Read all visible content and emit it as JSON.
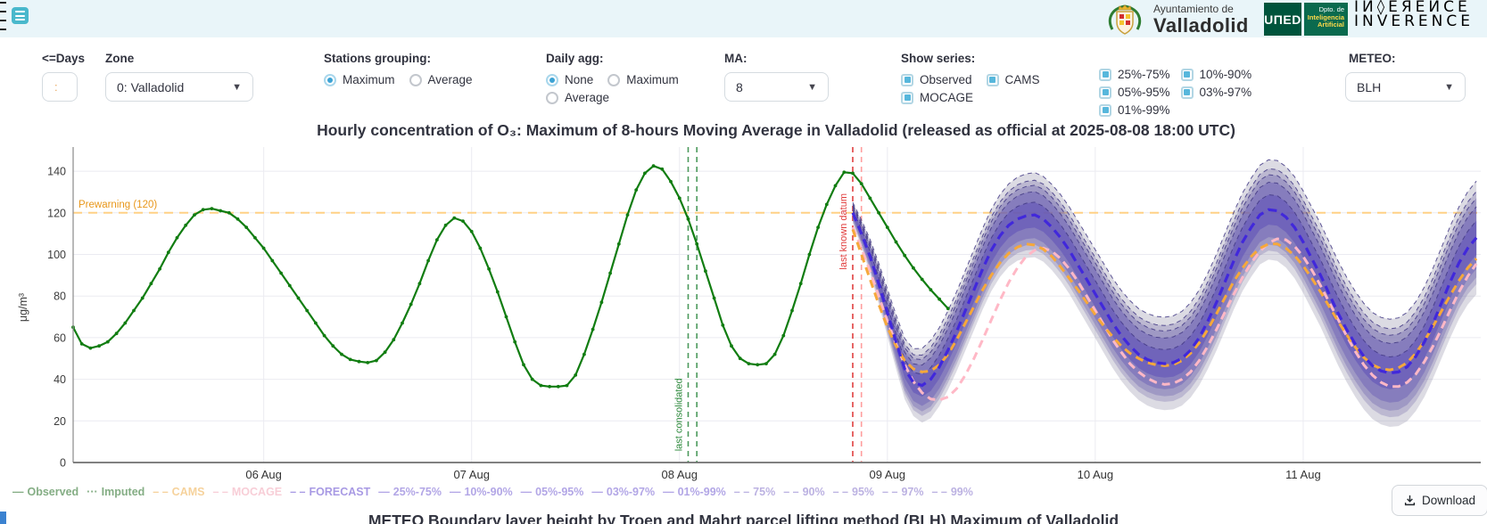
{
  "header": {
    "logos": {
      "city_tagline": "Ayuntamiento de",
      "city_name": "Valladolid",
      "uned": "UΠED",
      "dept_lines": [
        "Dpto. de",
        "Inteligencia",
        "Artificial"
      ],
      "inverence_top": "IИ◊EЯEИCE",
      "inverence_bottom": "INVERENCE"
    }
  },
  "controls": {
    "days": {
      "label": "<=Days",
      "value": ":"
    },
    "zone": {
      "label": "Zone",
      "value": "0: Valladolid"
    },
    "stations": {
      "label": "Stations grouping:",
      "options": [
        {
          "label": "Maximum",
          "selected": true
        },
        {
          "label": "Average",
          "selected": false
        }
      ]
    },
    "daily": {
      "label": "Daily agg:",
      "options": [
        {
          "label": "None",
          "selected": true
        },
        {
          "label": "Maximum",
          "selected": false
        },
        {
          "label": "Average",
          "selected": false
        }
      ]
    },
    "ma": {
      "label": "MA:",
      "value": "8"
    },
    "show_series": {
      "label": "Show series:",
      "options": [
        {
          "label": "Observed",
          "checked": true
        },
        {
          "label": "CAMS",
          "checked": true
        },
        {
          "label": "MOCAGE",
          "checked": true
        }
      ]
    },
    "percentiles": {
      "options": [
        {
          "label": "25%-75%",
          "checked": true
        },
        {
          "label": "10%-90%",
          "checked": true
        },
        {
          "label": "05%-95%",
          "checked": true
        },
        {
          "label": "03%-97%",
          "checked": true
        },
        {
          "label": "01%-99%",
          "checked": true
        }
      ]
    },
    "meteo": {
      "label": "METEO:",
      "value": "BLH"
    }
  },
  "chart_data": {
    "type": "line",
    "title": "Hourly concentration of O₃: Maximum of 8-hours Moving Average in Valladolid (released as official at 2025-08-08 18:00 UTC)",
    "ylabel": "μg/m³",
    "ylim": [
      0,
      151.6
    ],
    "yticks": [
      0,
      20,
      40,
      60,
      80,
      100,
      120,
      140
    ],
    "t_range": [
      0,
      162.5
    ],
    "x_ticks": [
      {
        "t": 22,
        "label": "06 Aug"
      },
      {
        "t": 46,
        "label": "07 Aug"
      },
      {
        "t": 70,
        "label": "08 Aug"
      },
      {
        "t": 94,
        "label": "09 Aug"
      },
      {
        "t": 118,
        "label": "10 Aug"
      },
      {
        "t": 142,
        "label": "11 Aug"
      }
    ],
    "grid": true,
    "threshold": {
      "value": 120,
      "label": "Prewarning (120)",
      "color": "#ffd185",
      "label_color": "#e8971b"
    },
    "vlines": [
      {
        "t": 71,
        "color": "#4c9a5c",
        "label": "last consolidated",
        "label_color": "#2e8b3c",
        "label_t": 70.3,
        "label_v": 23
      },
      {
        "t": 72,
        "color": "#4c9a5c"
      },
      {
        "t": 90,
        "color": "#e04040",
        "label": "last known datum",
        "label_color": "#e03c3c",
        "label_t": 89.3,
        "label_v": 111
      },
      {
        "t": 91,
        "color": "#ff9e9e"
      }
    ],
    "series": {
      "observed": {
        "name": "Observed",
        "color": "#117d11",
        "t_start": 0,
        "values": [
          65,
          57,
          55,
          56,
          58,
          62,
          67,
          73,
          79,
          86,
          93,
          101,
          108,
          114,
          119,
          121.5,
          122,
          121,
          120,
          117,
          113,
          108,
          103,
          97,
          91,
          85,
          79,
          73,
          67,
          61,
          56,
          52,
          49.5,
          48.5,
          48,
          49,
          53,
          59,
          67,
          76,
          86,
          97,
          107,
          114,
          117.5,
          116,
          111,
          103,
          93,
          82,
          70,
          58,
          47,
          40,
          37,
          36.5,
          36.5,
          37,
          42,
          52,
          64,
          77,
          91,
          105,
          119,
          131,
          139,
          142.5,
          141,
          135,
          127,
          117,
          105,
          92,
          79,
          66,
          56,
          50,
          47.5,
          47,
          47.5,
          52,
          61,
          73,
          86,
          100,
          113,
          124,
          133,
          139.5,
          139,
          134,
          127,
          120,
          113,
          106,
          99.5,
          93.5,
          88,
          83,
          78.5,
          74
        ]
      },
      "forecast": {
        "name": "FORECAST",
        "color": "#4128db",
        "t_start": 90,
        "values": [
          120,
          110,
          99,
          86,
          72,
          58,
          45,
          38.5,
          37,
          40,
          46,
          54,
          63,
          73,
          83,
          93,
          102,
          109,
          114,
          117,
          118.5,
          119,
          117,
          113,
          108,
          102,
          95,
          88,
          81,
          74,
          67,
          61,
          56,
          52,
          49.5,
          48,
          47.5,
          48,
          50,
          54,
          60,
          68,
          77,
          87,
          97,
          106,
          113,
          119,
          121.5,
          121,
          118,
          113,
          106,
          98,
          90,
          81,
          72,
          64,
          57,
          51,
          46.5,
          44,
          43,
          43.5,
          46,
          51,
          58,
          67,
          77,
          87,
          96,
          103,
          108
        ]
      },
      "cams": {
        "name": "CAMS",
        "color": "#f6a83a",
        "t_start": 90,
        "values": [
          112,
          100,
          88,
          76,
          65,
          56,
          49,
          45,
          43.5,
          44,
          47,
          52,
          59,
          67,
          75,
          83,
          90,
          96,
          100.5,
          103.5,
          105,
          104.5,
          102.5,
          99,
          94,
          88.5,
          83,
          77,
          71,
          65.5,
          60.5,
          56,
          52.5,
          50,
          48,
          47,
          46.5,
          47,
          49,
          52.5,
          57.5,
          64,
          71.5,
          79.5,
          87,
          93.5,
          99,
          103,
          105,
          105,
          103,
          99.5,
          94.5,
          88.5,
          82,
          75,
          68,
          61.5,
          55.5,
          50.5,
          47,
          45,
          44.5,
          45.5,
          48,
          52.5,
          58.5,
          65.5,
          73,
          80.5,
          87.5,
          93.5,
          98
        ]
      },
      "mocage": {
        "name": "MOCAGE",
        "color": "#ffb8c6",
        "t_start": 90,
        "values": [
          113,
          103,
          92,
          80,
          68,
          57,
          47,
          39,
          33.5,
          30.5,
          30,
          31.5,
          35.5,
          42,
          50,
          59,
          68.5,
          78,
          86.5,
          93.5,
          99,
          102,
          103,
          101.5,
          98,
          93,
          87,
          80,
          73,
          66,
          59,
          53,
          47.5,
          43.5,
          40.5,
          38.5,
          37.5,
          38,
          40,
          43.5,
          49,
          56,
          64,
          72.5,
          81,
          89,
          96,
          101.5,
          105.5,
          107.5,
          107,
          104,
          99,
          92.5,
          85,
          77,
          69,
          61,
          53.5,
          47,
          42,
          38.5,
          36.5,
          36.5,
          38.5,
          42.5,
          48.5,
          56,
          64.5,
          73.5,
          82,
          89.5,
          95.5
        ]
      }
    },
    "bands": {
      "labels": [
        "25%-75%",
        "10%-90%",
        "05%-95%",
        "03%-97%",
        "01%-99%"
      ],
      "k": [
        0.3,
        0.55,
        0.7,
        0.82,
        1.0
      ],
      "fills": [
        "rgba(97,82,184,0.58)",
        "rgba(105,92,180,0.46)",
        "rgba(113,102,176,0.38)",
        "rgba(122,113,170,0.32)",
        "rgba(130,126,155,0.28)"
      ],
      "spread": {
        "a": 5,
        "b": 1.6,
        "c": 17.5,
        "d": 0.135
      },
      "edge_color": "#433a85"
    }
  },
  "legend_items": [
    {
      "glyph": "—",
      "label": "Observed",
      "color": "#84ad84"
    },
    {
      "glyph": "···",
      "label": "Imputed",
      "color": "#84ad84"
    },
    {
      "glyph": "– –",
      "label": "CAMS",
      "color": "#f6d29c"
    },
    {
      "glyph": "– –",
      "label": "MOCAGE",
      "color": "#f8ced7"
    },
    {
      "glyph": "– –",
      "label": "FORECAST",
      "color": "#a89ae4"
    },
    {
      "glyph": "—",
      "label": "25%-75%",
      "color": "#b2a6e6"
    },
    {
      "glyph": "—",
      "label": "10%-90%",
      "color": "#b2a6e6"
    },
    {
      "glyph": "—",
      "label": "05%-95%",
      "color": "#b2a6e6"
    },
    {
      "glyph": "—",
      "label": "03%-97%",
      "color": "#b2a6e6"
    },
    {
      "glyph": "—",
      "label": "01%-99%",
      "color": "#b2a6e6"
    },
    {
      "glyph": "– –",
      "label": "75%",
      "color": "#bcb2e2"
    },
    {
      "glyph": "– –",
      "label": "90%",
      "color": "#bcb2e2"
    },
    {
      "glyph": "– –",
      "label": "95%",
      "color": "#bcb2e2"
    },
    {
      "glyph": "– –",
      "label": "97%",
      "color": "#bcb2e2"
    },
    {
      "glyph": "– –",
      "label": "99%",
      "color": "#bcb2e2"
    }
  ],
  "download_label": "Download",
  "bottom_title": "METEO Boundary layer height by Troen and Mahrt parcel lifting method (BLH) Maximum of Valladolid"
}
